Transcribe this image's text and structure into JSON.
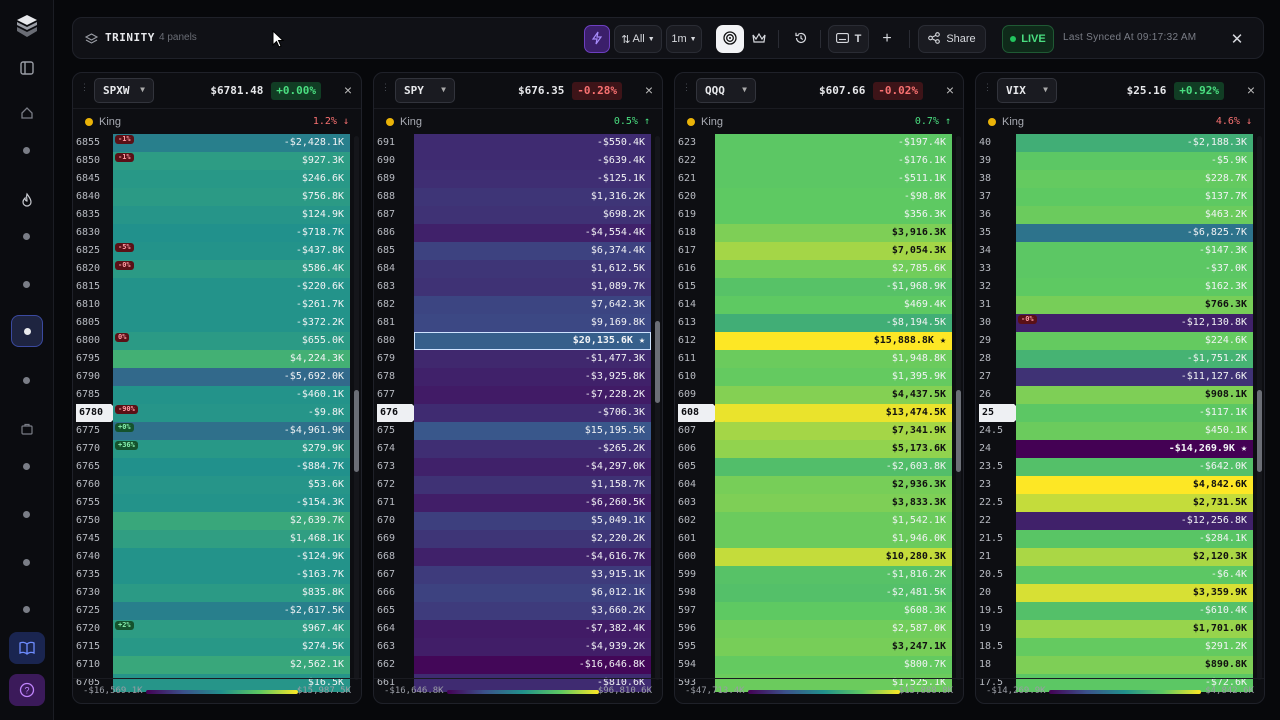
{
  "app": {
    "title": "TRINITY",
    "subtitle": "4 panels"
  },
  "toolbar": {
    "all_label": "All",
    "interval_label": "1m",
    "t_label": "T",
    "share_label": "Share",
    "live_label": "LIVE",
    "synced_text": "Last Synced At 09:17:32 AM"
  },
  "icons": [
    "logo-cube-icon",
    "sidebar-toggle-icon",
    "home-icon",
    "flame-icon",
    "grid-icon",
    "briefcase-icon",
    "book-icon",
    "help-icon",
    "layers-icon",
    "bolt-icon",
    "sort-icon",
    "target-icon",
    "crown-icon",
    "history-icon",
    "keyboard-icon",
    "plus-icon",
    "share-icon",
    "close-icon",
    "chevron-down-icon"
  ],
  "colors": {
    "viridis": [
      "#440154",
      "#3b528b",
      "#21918c",
      "#5ec962",
      "#fde725"
    ],
    "live": "#22c55e",
    "king": "#eab308"
  },
  "panels": [
    {
      "symbol": "SPXW",
      "price": "$6781.48",
      "change": "+0.00%",
      "change_dir": "up",
      "king_label": "King",
      "king_pct": "1.2% ↓",
      "king_dir": "dn",
      "range_min": "-$16,569.1K",
      "range_max": "$15,987.5K",
      "scroll_pos": 0.55,
      "rows": [
        {
          "strike": "6855",
          "value": "-$2,428.1K",
          "level": 0.43,
          "badge": "-1%",
          "badge_type": "r"
        },
        {
          "strike": "6850",
          "value": "$927.3K",
          "level": 0.55,
          "badge": "-1%",
          "badge_type": "r"
        },
        {
          "strike": "6845",
          "value": "$246.6K",
          "level": 0.53
        },
        {
          "strike": "6840",
          "value": "$756.8K",
          "level": 0.54
        },
        {
          "strike": "6835",
          "value": "$124.9K",
          "level": 0.52
        },
        {
          "strike": "6830",
          "value": "-$718.7K",
          "level": 0.5
        },
        {
          "strike": "6825",
          "value": "-$437.8K",
          "level": 0.51,
          "badge": "-5%",
          "badge_type": "r"
        },
        {
          "strike": "6820",
          "value": "$586.4K",
          "level": 0.54,
          "badge": "-0%",
          "badge_type": "r"
        },
        {
          "strike": "6815",
          "value": "-$220.6K",
          "level": 0.51
        },
        {
          "strike": "6810",
          "value": "-$261.7K",
          "level": 0.51
        },
        {
          "strike": "6805",
          "value": "-$372.2K",
          "level": 0.51
        },
        {
          "strike": "6800",
          "value": "$655.0K",
          "level": 0.54,
          "badge": "0%",
          "badge_type": "r"
        },
        {
          "strike": "6795",
          "value": "$4,224.3K",
          "level": 0.64
        },
        {
          "strike": "6790",
          "value": "-$5,692.0K",
          "level": 0.34
        },
        {
          "strike": "6785",
          "value": "-$460.1K",
          "level": 0.51
        },
        {
          "strike": "6780",
          "value": "-$9.8K",
          "level": 0.52,
          "badge": "-90%",
          "badge_type": "r",
          "current": true
        },
        {
          "strike": "6775",
          "value": "-$4,961.9K",
          "level": 0.37,
          "badge": "+0%",
          "badge_type": "g"
        },
        {
          "strike": "6770",
          "value": "$279.9K",
          "level": 0.53,
          "badge": "+36%",
          "badge_type": "g"
        },
        {
          "strike": "6765",
          "value": "-$884.7K",
          "level": 0.5
        },
        {
          "strike": "6760",
          "value": "$53.6K",
          "level": 0.52
        },
        {
          "strike": "6755",
          "value": "-$154.3K",
          "level": 0.51
        },
        {
          "strike": "6750",
          "value": "$2,639.7K",
          "level": 0.6
        },
        {
          "strike": "6745",
          "value": "$1,468.1K",
          "level": 0.56
        },
        {
          "strike": "6740",
          "value": "-$124.9K",
          "level": 0.51
        },
        {
          "strike": "6735",
          "value": "-$163.7K",
          "level": 0.51
        },
        {
          "strike": "6730",
          "value": "$835.8K",
          "level": 0.54
        },
        {
          "strike": "6725",
          "value": "-$2,617.5K",
          "level": 0.43
        },
        {
          "strike": "6720",
          "value": "$967.4K",
          "level": 0.55,
          "badge": "+2%",
          "badge_type": "g"
        },
        {
          "strike": "6715",
          "value": "$274.5K",
          "level": 0.53
        },
        {
          "strike": "6710",
          "value": "$2,562.1K",
          "level": 0.6
        },
        {
          "strike": "6705",
          "value": "$16.5K",
          "level": 0.52
        }
      ]
    },
    {
      "symbol": "SPY",
      "price": "$676.35",
      "change": "-0.28%",
      "change_dir": "dn",
      "king_label": "King",
      "king_pct": "0.5% ↑",
      "king_dir": "up",
      "range_min": "-$16,646.8K",
      "range_max": "$96,810.6K",
      "scroll_pos": 0.4,
      "rows": [
        {
          "strike": "691",
          "value": "-$550.4K",
          "level": 0.13
        },
        {
          "strike": "690",
          "value": "-$639.4K",
          "level": 0.13
        },
        {
          "strike": "689",
          "value": "-$125.1K",
          "level": 0.14
        },
        {
          "strike": "688",
          "value": "$1,316.2K",
          "level": 0.16
        },
        {
          "strike": "687",
          "value": "$698.2K",
          "level": 0.15
        },
        {
          "strike": "686",
          "value": "-$4,554.4K",
          "level": 0.1
        },
        {
          "strike": "685",
          "value": "$6,374.4K",
          "level": 0.2
        },
        {
          "strike": "684",
          "value": "$1,612.5K",
          "level": 0.16
        },
        {
          "strike": "683",
          "value": "$1,089.7K",
          "level": 0.15
        },
        {
          "strike": "682",
          "value": "$7,642.3K",
          "level": 0.21
        },
        {
          "strike": "681",
          "value": "$9,169.8K",
          "level": 0.22
        },
        {
          "strike": "680",
          "value": "$20,135.6K ★",
          "level": 0.3,
          "king": true,
          "selected": true
        },
        {
          "strike": "679",
          "value": "-$1,477.3K",
          "level": 0.12
        },
        {
          "strike": "678",
          "value": "-$3,925.8K",
          "level": 0.1
        },
        {
          "strike": "677",
          "value": "-$7,228.2K",
          "level": 0.08
        },
        {
          "strike": "676",
          "value": "-$706.3K",
          "level": 0.13,
          "current": true
        },
        {
          "strike": "675",
          "value": "$15,195.5K",
          "level": 0.27
        },
        {
          "strike": "674",
          "value": "-$265.2K",
          "level": 0.14
        },
        {
          "strike": "673",
          "value": "-$4,297.0K",
          "level": 0.1
        },
        {
          "strike": "672",
          "value": "$1,158.7K",
          "level": 0.15
        },
        {
          "strike": "671",
          "value": "-$6,260.5K",
          "level": 0.09
        },
        {
          "strike": "670",
          "value": "$5,049.1K",
          "level": 0.19
        },
        {
          "strike": "669",
          "value": "$2,220.2K",
          "level": 0.16
        },
        {
          "strike": "668",
          "value": "-$4,616.7K",
          "level": 0.1
        },
        {
          "strike": "667",
          "value": "$3,915.1K",
          "level": 0.18
        },
        {
          "strike": "666",
          "value": "$6,012.1K",
          "level": 0.2
        },
        {
          "strike": "665",
          "value": "$3,660.2K",
          "level": 0.18
        },
        {
          "strike": "664",
          "value": "-$7,382.4K",
          "level": 0.08
        },
        {
          "strike": "663",
          "value": "-$4,939.2K",
          "level": 0.09
        },
        {
          "strike": "662",
          "value": "-$16,646.8K",
          "level": 0.02
        },
        {
          "strike": "661",
          "value": "-$810.6K",
          "level": 0.13
        }
      ]
    },
    {
      "symbol": "QQQ",
      "price": "$607.66",
      "change": "-0.02%",
      "change_dir": "dn",
      "king_label": "King",
      "king_pct": "0.7% ↑",
      "king_dir": "up",
      "range_min": "-$47,713.4K",
      "range_max": "$15,888.8K",
      "scroll_pos": 0.55,
      "rows": [
        {
          "strike": "623",
          "value": "-$197.4K",
          "level": 0.74
        },
        {
          "strike": "622",
          "value": "-$176.1K",
          "level": 0.74
        },
        {
          "strike": "621",
          "value": "-$511.1K",
          "level": 0.74
        },
        {
          "strike": "620",
          "value": "-$98.8K",
          "level": 0.75
        },
        {
          "strike": "619",
          "value": "$356.3K",
          "level": 0.75
        },
        {
          "strike": "618",
          "value": "$3,916.3K",
          "level": 0.8
        },
        {
          "strike": "617",
          "value": "$7,054.3K",
          "level": 0.86
        },
        {
          "strike": "616",
          "value": "$2,785.6K",
          "level": 0.78
        },
        {
          "strike": "615",
          "value": "-$1,968.9K",
          "level": 0.72
        },
        {
          "strike": "614",
          "value": "$469.4K",
          "level": 0.75
        },
        {
          "strike": "613",
          "value": "-$8,194.5K",
          "level": 0.63
        },
        {
          "strike": "612",
          "value": "$15,888.8K ★",
          "level": 1.0,
          "king": true
        },
        {
          "strike": "611",
          "value": "$1,948.8K",
          "level": 0.77
        },
        {
          "strike": "610",
          "value": "$1,395.9K",
          "level": 0.76
        },
        {
          "strike": "609",
          "value": "$4,437.5K",
          "level": 0.81
        },
        {
          "strike": "608",
          "value": "$13,474.5K",
          "level": 0.97,
          "current": true
        },
        {
          "strike": "607",
          "value": "$7,341.9K",
          "level": 0.86
        },
        {
          "strike": "606",
          "value": "$5,173.6K",
          "level": 0.83
        },
        {
          "strike": "605",
          "value": "-$2,603.8K",
          "level": 0.7
        },
        {
          "strike": "604",
          "value": "$2,936.3K",
          "level": 0.79
        },
        {
          "strike": "603",
          "value": "$3,833.3K",
          "level": 0.8
        },
        {
          "strike": "602",
          "value": "$1,542.1K",
          "level": 0.77
        },
        {
          "strike": "601",
          "value": "$1,946.0K",
          "level": 0.77
        },
        {
          "strike": "600",
          "value": "$10,280.3K",
          "level": 0.91
        },
        {
          "strike": "599",
          "value": "-$1,816.2K",
          "level": 0.72
        },
        {
          "strike": "598",
          "value": "-$2,481.5K",
          "level": 0.71
        },
        {
          "strike": "597",
          "value": "$608.3K",
          "level": 0.75
        },
        {
          "strike": "596",
          "value": "$2,587.0K",
          "level": 0.78
        },
        {
          "strike": "595",
          "value": "$3,247.1K",
          "level": 0.79
        },
        {
          "strike": "594",
          "value": "$800.7K",
          "level": 0.76
        },
        {
          "strike": "593",
          "value": "$1,525.1K",
          "level": 0.77
        }
      ]
    },
    {
      "symbol": "VIX",
      "price": "$25.16",
      "change": "+0.92%",
      "change_dir": "up",
      "king_label": "King",
      "king_pct": "4.6% ↓",
      "king_dir": "dn",
      "range_min": "-$14,269.9K",
      "range_max": "$4,842.6K",
      "scroll_pos": 0.55,
      "rows": [
        {
          "strike": "40",
          "value": "-$2,188.3K",
          "level": 0.63
        },
        {
          "strike": "39",
          "value": "-$5.9K",
          "level": 0.74
        },
        {
          "strike": "38",
          "value": "$228.7K",
          "level": 0.76
        },
        {
          "strike": "37",
          "value": "$137.7K",
          "level": 0.75
        },
        {
          "strike": "36",
          "value": "$463.2K",
          "level": 0.77
        },
        {
          "strike": "35",
          "value": "-$6,825.7K",
          "level": 0.38
        },
        {
          "strike": "34",
          "value": "-$147.3K",
          "level": 0.74
        },
        {
          "strike": "33",
          "value": "-$37.0K",
          "level": 0.74
        },
        {
          "strike": "32",
          "value": "$162.3K",
          "level": 0.75
        },
        {
          "strike": "31",
          "value": "$766.3K",
          "level": 0.79
        },
        {
          "strike": "30",
          "value": "-$12,130.8K",
          "level": 0.1,
          "badge": "-0%",
          "badge_type": "r"
        },
        {
          "strike": "29",
          "value": "$224.6K",
          "level": 0.76
        },
        {
          "strike": "28",
          "value": "-$1,751.2K",
          "level": 0.65
        },
        {
          "strike": "27",
          "value": "-$11,127.6K",
          "level": 0.15
        },
        {
          "strike": "26",
          "value": "$908.1K",
          "level": 0.8
        },
        {
          "strike": "25",
          "value": "-$117.1K",
          "level": 0.74,
          "current": true
        },
        {
          "strike": "24.5",
          "value": "$450.1K",
          "level": 0.77
        },
        {
          "strike": "24",
          "value": "-$14,269.9K ★",
          "level": 0.0,
          "king": true
        },
        {
          "strike": "23.5",
          "value": "-$642.0K",
          "level": 0.71
        },
        {
          "strike": "23",
          "value": "$4,842.6K",
          "level": 1.0
        },
        {
          "strike": "22.5",
          "value": "$2,731.5K",
          "level": 0.91
        },
        {
          "strike": "22",
          "value": "-$12,256.8K",
          "level": 0.1
        },
        {
          "strike": "21.5",
          "value": "-$284.1K",
          "level": 0.73
        },
        {
          "strike": "21",
          "value": "$2,120.3K",
          "level": 0.87
        },
        {
          "strike": "20.5",
          "value": "-$6.4K",
          "level": 0.74
        },
        {
          "strike": "20",
          "value": "$3,359.9K",
          "level": 0.94
        },
        {
          "strike": "19.5",
          "value": "-$610.4K",
          "level": 0.71
        },
        {
          "strike": "19",
          "value": "$1,701.0K",
          "level": 0.84
        },
        {
          "strike": "18.5",
          "value": "$291.2K",
          "level": 0.76
        },
        {
          "strike": "18",
          "value": "$890.8K",
          "level": 0.8
        },
        {
          "strike": "17.5",
          "value": "-$72.6K",
          "level": 0.74
        }
      ]
    }
  ]
}
